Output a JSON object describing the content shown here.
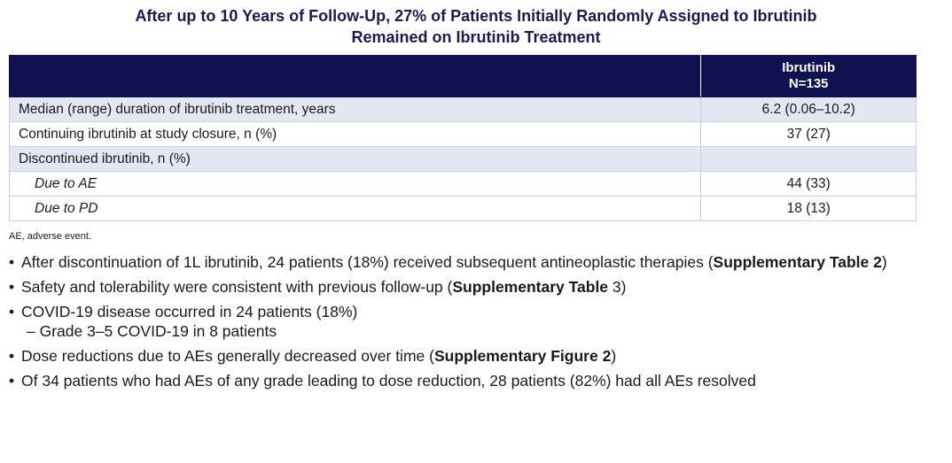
{
  "title": {
    "line1": "After up to 10 Years of Follow-Up, 27% of Patients Initially Randomly Assigned to Ibrutinib",
    "line2": "Remained on Ibrutinib Treatment"
  },
  "table": {
    "header": {
      "col2_line1": "Ibrutinib",
      "col2_line2": "N=135"
    },
    "rows": [
      {
        "label": "Median (range) duration of ibrutinib treatment, years",
        "value": "6.2 (0.06–10.2)"
      },
      {
        "label": "Continuing ibrutinib at study closure, n (%)",
        "value": "37 (27)"
      },
      {
        "label": "Discontinued ibrutinib, n (%)",
        "value": ""
      },
      {
        "label": "Due to AE",
        "value": "44 (33)"
      },
      {
        "label": "Due to PD",
        "value": "18 (13)"
      }
    ]
  },
  "footnote": "AE, adverse event.",
  "bullets": {
    "b1_pre": "After discontinuation of 1L ibrutinib, 24 patients (18%) received subsequent antineoplastic therapies (",
    "b1_bold": "Supplementary Table 2",
    "b1_post": ")",
    "b2_pre": "Safety and tolerability were consistent with previous follow-up (",
    "b2_bold": "Supplementary Table",
    "b2_post": " 3)",
    "b3": "COVID-19 disease occurred in 24 patients (18%)",
    "b3_sub": "– Grade 3–5 COVID-19 in 8 patients",
    "b4_pre": "Dose reductions due to AEs generally decreased over time (",
    "b4_bold": "Supplementary Figure 2",
    "b4_post": ")",
    "b5": "Of 34 patients who had AEs of any grade leading to dose reduction, 28 patients (82%) had all AEs resolved"
  },
  "bullet_glyph": "•"
}
